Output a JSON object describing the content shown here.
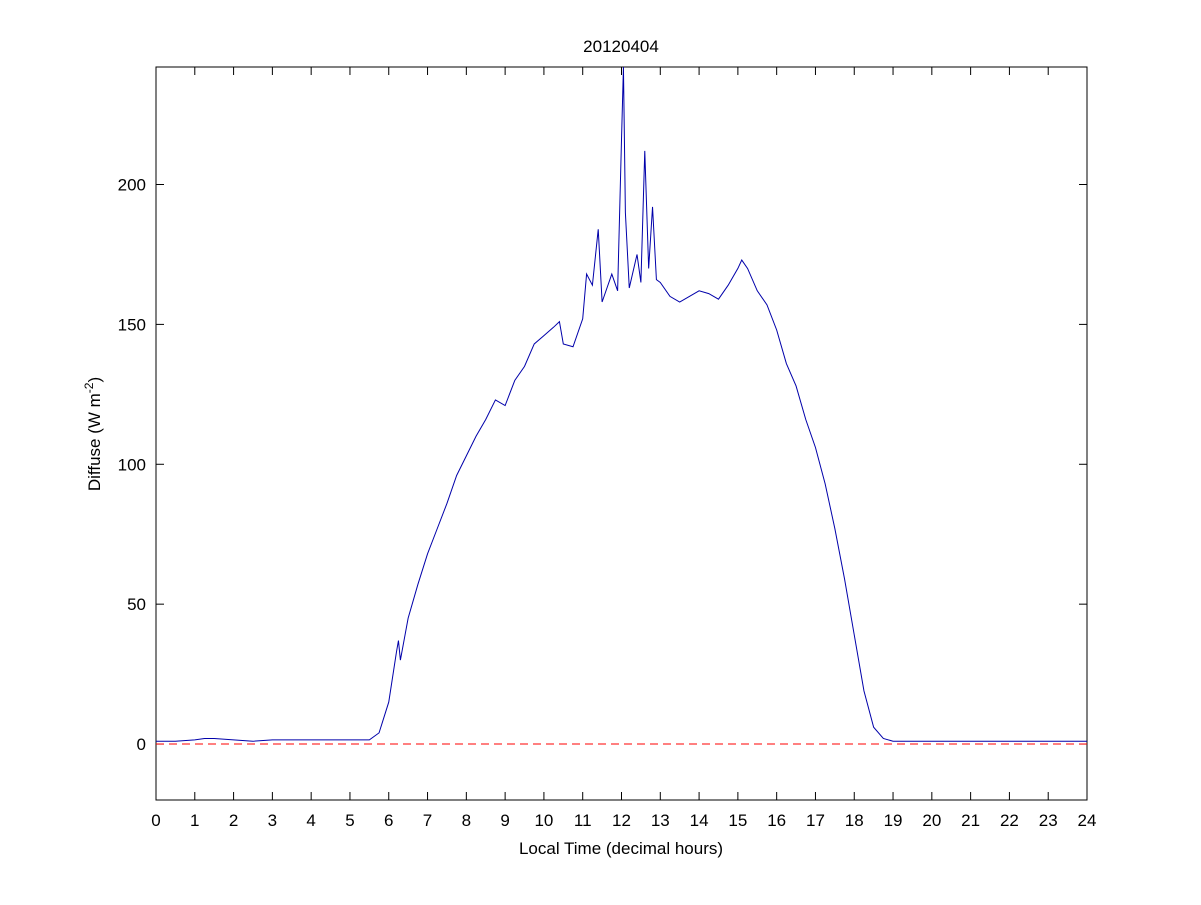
{
  "chart_data": {
    "type": "line",
    "title": "20120404",
    "xlabel": "Local Time (decimal hours)",
    "ylabel": {
      "text": "Diffuse (W m",
      "superscript": "-2",
      "suffix": ")"
    },
    "xlim": [
      0,
      24
    ],
    "xticks": [
      0,
      1,
      2,
      3,
      4,
      5,
      6,
      7,
      8,
      9,
      10,
      11,
      12,
      13,
      14,
      15,
      16,
      17,
      18,
      19,
      20,
      21,
      22,
      23,
      24
    ],
    "ylim": [
      -20,
      242
    ],
    "yticks": [
      0,
      50,
      100,
      150,
      200
    ],
    "hline": {
      "value": 0,
      "color": "#ff0000"
    },
    "series": [
      {
        "color": "#0000aa",
        "x": [
          0,
          0.5,
          1,
          1.25,
          1.5,
          2,
          2.5,
          3,
          3.5,
          4,
          4.5,
          5,
          5.5,
          5.75,
          6,
          6.2,
          6.25,
          6.3,
          6.5,
          6.75,
          7,
          7.25,
          7.5,
          7.75,
          8,
          8.25,
          8.5,
          8.75,
          9,
          9.25,
          9.5,
          9.75,
          10,
          10.25,
          10.4,
          10.5,
          10.75,
          11,
          11.1,
          11.25,
          11.4,
          11.5,
          11.75,
          11.9,
          12,
          12.05,
          12.1,
          12.2,
          12.4,
          12.5,
          12.6,
          12.7,
          12.8,
          12.9,
          13,
          13.25,
          13.5,
          13.75,
          14,
          14.25,
          14.5,
          14.75,
          15,
          15.1,
          15.25,
          15.5,
          15.75,
          16,
          16.25,
          16.5,
          16.75,
          17,
          17.25,
          17.5,
          17.75,
          18,
          18.25,
          18.5,
          18.75,
          19,
          19.5,
          20,
          20.5,
          21,
          21.5,
          22,
          22.5,
          23,
          23.5,
          24
        ],
        "values": [
          1,
          1,
          1.5,
          2,
          2,
          1.5,
          1,
          1.5,
          1.5,
          1.5,
          1.5,
          1.5,
          1.5,
          4,
          15,
          33,
          37,
          30,
          45,
          57,
          68,
          77,
          86,
          96,
          103,
          110,
          116,
          123,
          121,
          130,
          135,
          143,
          146,
          149,
          151,
          143,
          142,
          152,
          168,
          164,
          184,
          158,
          168,
          162,
          216,
          242,
          190,
          163,
          175,
          165,
          212,
          170,
          192,
          166,
          165,
          160,
          158,
          160,
          162,
          161,
          159,
          164,
          170,
          173,
          170,
          162,
          157,
          148,
          136,
          128,
          116,
          106,
          93,
          77,
          59,
          39,
          19,
          6,
          2,
          1,
          1,
          1,
          1,
          1,
          1,
          1,
          1,
          1,
          1,
          1
        ]
      }
    ]
  }
}
